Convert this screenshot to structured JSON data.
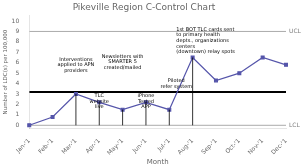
{
  "chart_data": {
    "type": "line",
    "title": "Pikeville Region C-Control Chart",
    "x_label": "Month",
    "y_label": "Number of LDC(s) per 100,000",
    "categories": [
      "Jan-'1",
      "Feb-'1",
      "Mar-'1",
      "Apr-'1",
      "May-'1",
      "Jun-'1",
      "Jul-'1",
      "Aug-'1",
      "Sep-'1",
      "Oct-'1",
      "Nov-'1",
      "Dec-'1"
    ],
    "values": [
      0.0,
      0.8,
      3.0,
      2.2,
      1.5,
      2.2,
      1.5,
      6.5,
      4.3,
      5.0,
      6.5,
      5.8
    ],
    "color": "#5555aa",
    "marker": "square",
    "ylim": [
      -0.3,
      10.5
    ],
    "yticks": [
      0,
      1,
      2,
      3,
      4,
      5,
      6,
      7,
      8,
      9,
      10
    ],
    "grid": false,
    "reference_lines": [
      {
        "value": 9.0,
        "label": "UCL",
        "color": "#aaaaaa",
        "line_style": "thin"
      },
      {
        "value": 3.2,
        "color": "#000000",
        "line_style": "thick"
      },
      {
        "value": 0.0,
        "label": "LCL",
        "color": "#aaaaaa",
        "line_style": "thin"
      }
    ],
    "annotation_lines": [
      {
        "x": 2,
        "from": 0.0,
        "to": 3.0
      },
      {
        "x": 3,
        "from": 0.0,
        "to": 2.2
      },
      {
        "x": 4,
        "from": 0.0,
        "to": 1.5
      },
      {
        "x": 5,
        "from": 0.0,
        "to": 2.2
      },
      {
        "x": 6,
        "from": 0.0,
        "to": 1.5
      },
      {
        "x": 7,
        "from": 0.0,
        "to": 6.5
      }
    ],
    "annotations": [
      {
        "x": 2.0,
        "y": 5.0,
        "text": "Interventions\napplied to APN\nproviders",
        "align": "center"
      },
      {
        "x": 3.0,
        "y": 1.5,
        "text": "TLC\nwebsite\nlive",
        "align": "center"
      },
      {
        "x": 4.0,
        "y": 5.3,
        "text": "Newsletters with\nSMARTER 5\ncreated/mailed",
        "align": "center"
      },
      {
        "x": 5.0,
        "y": 1.5,
        "text": "iPhone\nTested\nAPP",
        "align": "center"
      },
      {
        "x": 6.3,
        "y": 3.5,
        "text": "Piloted\nrefer system",
        "align": "center"
      },
      {
        "x": 6.3,
        "y": 6.8,
        "text": "1st BOT TLC cards sent\nto primary health\ndepts., organizations\ncenters\n(downtown) relay spots",
        "align": "left"
      }
    ]
  }
}
